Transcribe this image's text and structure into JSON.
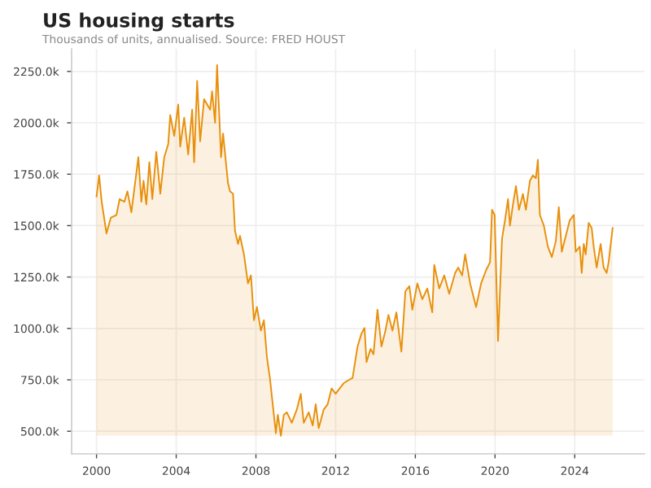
{
  "chart_data": {
    "type": "area",
    "title": "US housing starts",
    "subtitle": "Thousands of units, annualised. Source: FRED HOUST",
    "x": [
      2000.0,
      2000.13,
      2000.26,
      2000.5,
      2000.72,
      2001.0,
      2001.16,
      2001.4,
      2001.55,
      2001.75,
      2002.1,
      2002.25,
      2002.36,
      2002.5,
      2002.65,
      2002.8,
      2003.0,
      2003.2,
      2003.4,
      2003.6,
      2003.7,
      2003.9,
      2004.1,
      2004.2,
      2004.4,
      2004.6,
      2004.8,
      2004.9,
      2005.05,
      2005.2,
      2005.4,
      2005.7,
      2005.8,
      2005.95,
      2006.05,
      2006.25,
      2006.35,
      2006.6,
      2006.7,
      2006.85,
      2006.95,
      2007.1,
      2007.2,
      2007.4,
      2007.6,
      2007.75,
      2007.9,
      2008.05,
      2008.25,
      2008.4,
      2008.55,
      2008.7,
      2008.9,
      2009.0,
      2009.1,
      2009.25,
      2009.4,
      2009.55,
      2009.8,
      2010.05,
      2010.25,
      2010.4,
      2010.65,
      2010.85,
      2011.0,
      2011.15,
      2011.4,
      2011.6,
      2011.8,
      2012.0,
      2012.2,
      2012.4,
      2012.6,
      2012.85,
      2013.1,
      2013.3,
      2013.45,
      2013.55,
      2013.75,
      2013.9,
      2014.1,
      2014.3,
      2014.5,
      2014.65,
      2014.85,
      2015.05,
      2015.3,
      2015.5,
      2015.7,
      2015.85,
      2016.1,
      2016.35,
      2016.6,
      2016.85,
      2016.95,
      2017.2,
      2017.45,
      2017.7,
      2018.0,
      2018.15,
      2018.35,
      2018.5,
      2018.75,
      2019.05,
      2019.3,
      2019.55,
      2019.75,
      2019.85,
      2019.98,
      2020.15,
      2020.35,
      2020.5,
      2020.65,
      2020.75,
      2020.9,
      2021.05,
      2021.2,
      2021.4,
      2021.55,
      2021.75,
      2021.9,
      2022.05,
      2022.15,
      2022.25,
      2022.45,
      2022.65,
      2022.85,
      2023.05,
      2023.2,
      2023.35,
      2023.55,
      2023.75,
      2023.95,
      2024.05,
      2024.25,
      2024.35,
      2024.45,
      2024.55,
      2024.7,
      2024.85,
      2024.95,
      2025.1,
      2025.3,
      2025.45,
      2025.6,
      2025.7,
      2025.9
    ],
    "series": [
      {
        "color": "#e8900c",
        "values": [
          1641,
          1744,
          1616,
          1462,
          1539,
          1552,
          1629,
          1616,
          1667,
          1565,
          1833,
          1616,
          1718,
          1603,
          1808,
          1629,
          1859,
          1655,
          1833,
          1897,
          2038,
          1936,
          2089,
          1884,
          2025,
          1846,
          2064,
          1808,
          2204,
          1910,
          2115,
          2064,
          2153,
          2000,
          2281,
          1833,
          1948,
          1706,
          1667,
          1655,
          1475,
          1411,
          1450,
          1360,
          1219,
          1258,
          1040,
          1104,
          989,
          1040,
          861,
          759,
          580,
          490,
          580,
          478,
          580,
          592,
          541,
          605,
          682,
          541,
          592,
          528,
          631,
          515,
          605,
          631,
          708,
          682,
          708,
          733,
          746,
          759,
          912,
          976,
          1002,
          836,
          900,
          874,
          1091,
          912,
          989,
          1066,
          989,
          1078,
          887,
          1181,
          1206,
          1091,
          1219,
          1142,
          1194,
          1078,
          1309,
          1194,
          1258,
          1168,
          1270,
          1296,
          1258,
          1360,
          1219,
          1104,
          1219,
          1283,
          1322,
          1577,
          1552,
          939,
          1436,
          1526,
          1629,
          1500,
          1603,
          1693,
          1577,
          1654,
          1577,
          1718,
          1744,
          1731,
          1820,
          1552,
          1500,
          1398,
          1347,
          1424,
          1590,
          1373,
          1449,
          1526,
          1552,
          1373,
          1398,
          1270,
          1411,
          1360,
          1514,
          1488,
          1399,
          1296,
          1411,
          1296,
          1270,
          1322,
          1488
        ]
      }
    ],
    "xlim": [
      1998.75,
      2027.5
    ],
    "ylim": [
      390,
      2360
    ],
    "xticks": [
      2000,
      2004,
      2008,
      2012,
      2016,
      2020,
      2024
    ],
    "yticks": [
      {
        "value": 500,
        "label": "500.0k"
      },
      {
        "value": 750,
        "label": "750.0k"
      },
      {
        "value": 1000,
        "label": "1000.0k"
      },
      {
        "value": 1250,
        "label": "1250.0k"
      },
      {
        "value": 1500,
        "label": "1500.0k"
      },
      {
        "value": 1750,
        "label": "1750.0k"
      },
      {
        "value": 2000,
        "label": "2000.0k"
      },
      {
        "value": 2250,
        "label": "2250.0k"
      }
    ],
    "grid": true,
    "legend": false
  }
}
